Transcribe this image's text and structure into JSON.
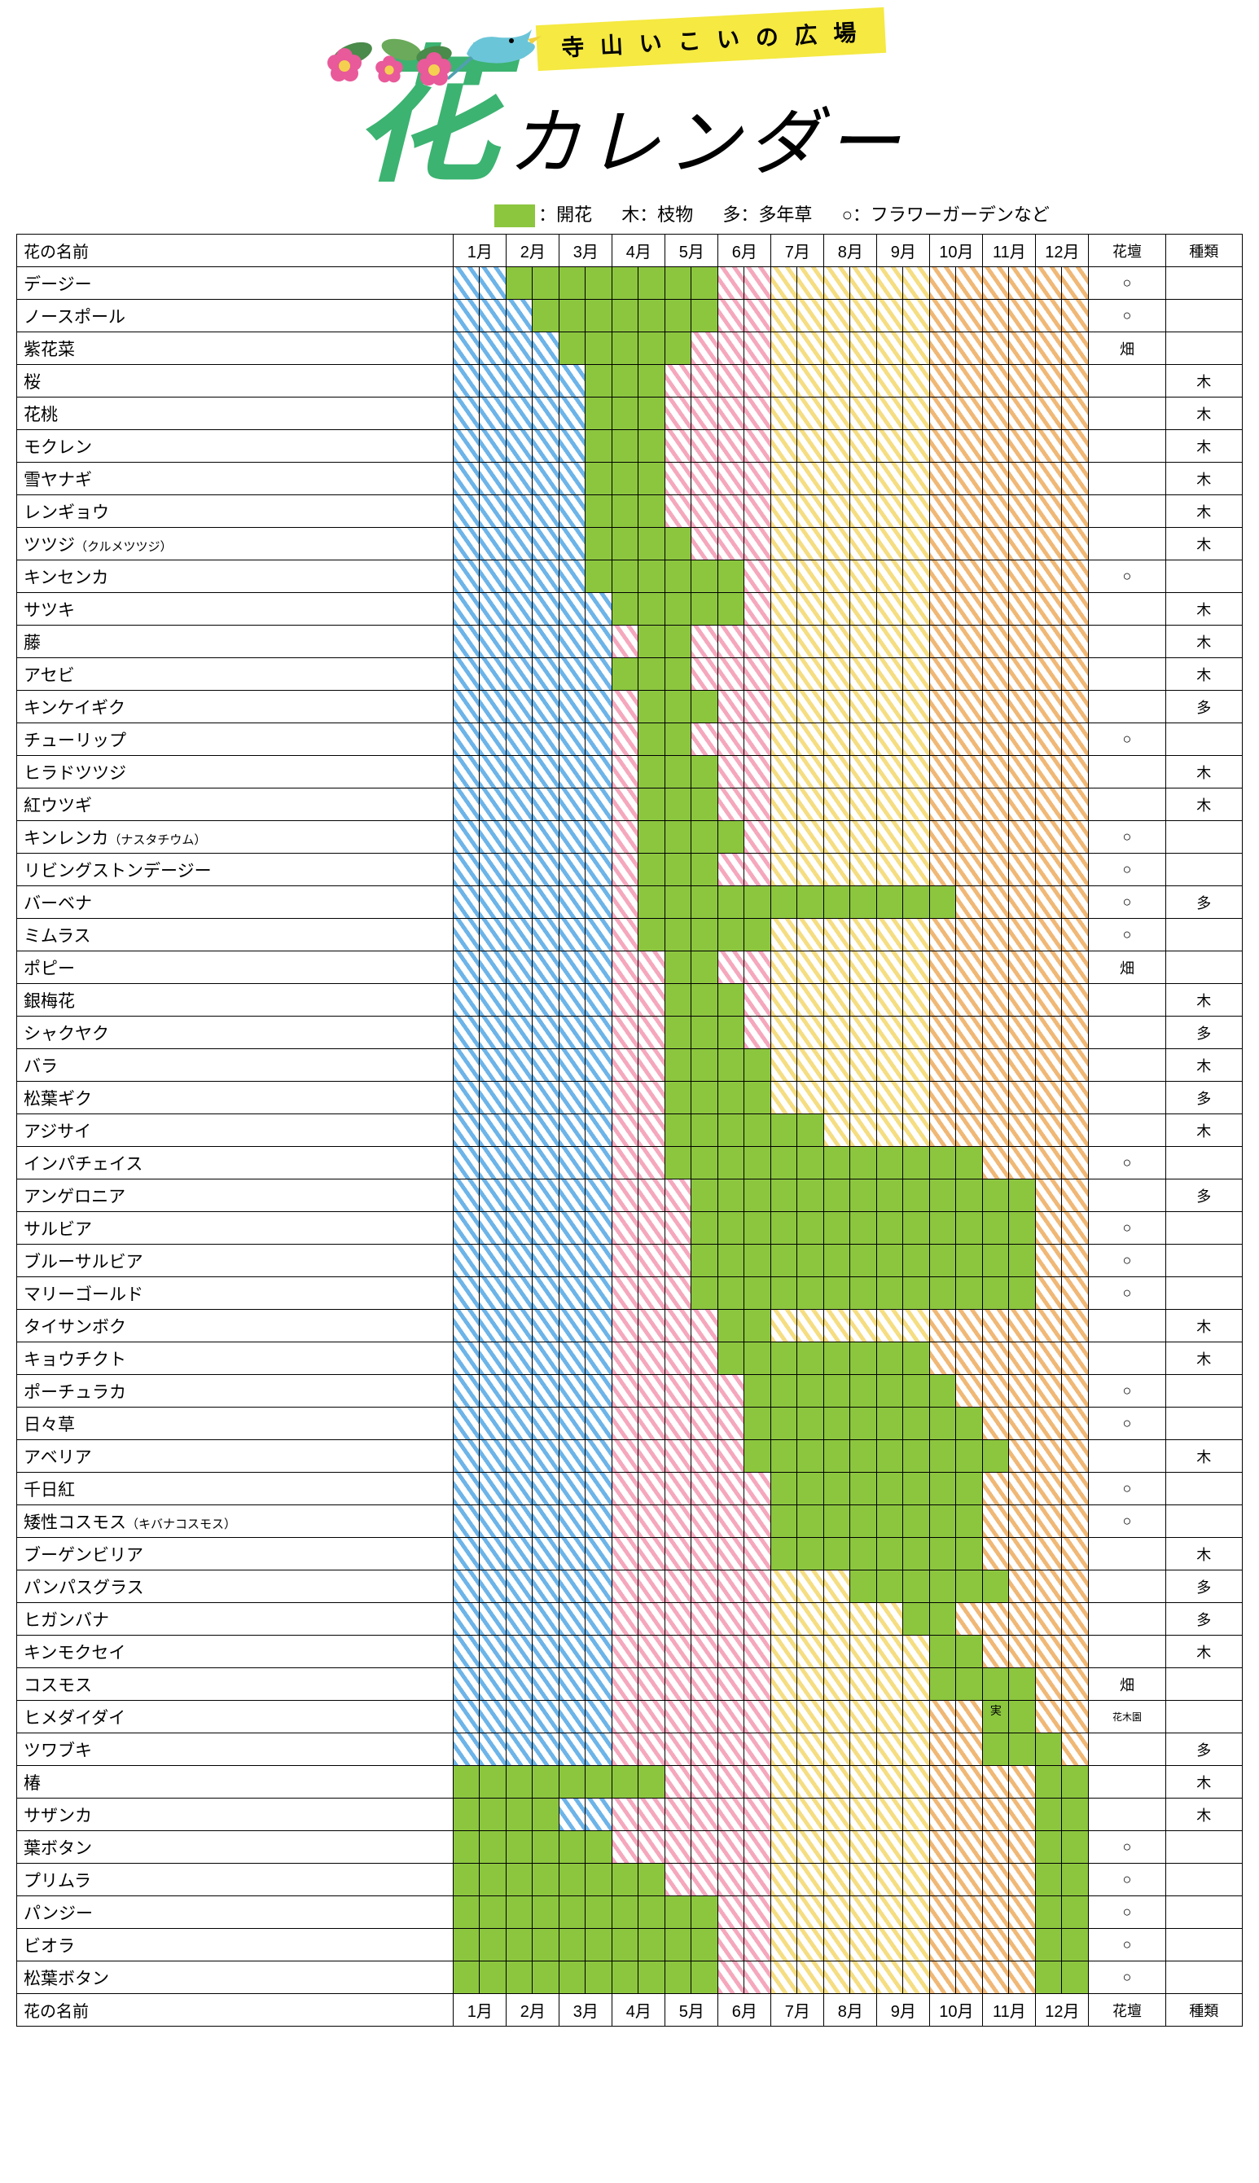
{
  "banner": "寺 山 い こ い の 広 場",
  "title_hana": "花",
  "title_calendar": "カレンダー",
  "legend": {
    "bloom": "：開花",
    "tree": "木：枝物",
    "perennial": "多：多年草",
    "garden": "○：フラワーガーデンなど"
  },
  "header": {
    "name": "花の名前",
    "months": [
      "1月",
      "2月",
      "3月",
      "4月",
      "5月",
      "6月",
      "7月",
      "8月",
      "9月",
      "10月",
      "11月",
      "12月"
    ],
    "garden": "花壇",
    "type": "種類"
  },
  "seasons": {
    "blue": {
      "color": "#6db4e8",
      "halves": [
        0,
        1,
        2,
        3,
        4,
        5
      ]
    },
    "pink": {
      "color": "#f5a8bd",
      "halves": [
        6,
        7,
        8,
        9,
        10,
        11
      ]
    },
    "yellow": {
      "color": "#f5dd82",
      "halves": [
        12,
        13,
        14,
        15,
        16,
        17
      ]
    },
    "orange": {
      "color": "#f0b876",
      "halves": [
        18,
        19,
        20,
        21,
        22,
        23
      ]
    }
  },
  "bloom_color": "#8cc63f",
  "flowers": [
    {
      "name": "デージー",
      "bloom": [
        2,
        3,
        4,
        5,
        6,
        7,
        8,
        9
      ],
      "garden": "○",
      "type": ""
    },
    {
      "name": "ノースポール",
      "bloom": [
        3,
        4,
        5,
        6,
        7,
        8,
        9
      ],
      "garden": "○",
      "type": ""
    },
    {
      "name": "紫花菜",
      "bloom": [
        4,
        5,
        6,
        7,
        8
      ],
      "garden": "畑",
      "type": ""
    },
    {
      "name": "桜",
      "bloom": [
        5,
        6,
        7
      ],
      "garden": "",
      "type": "木"
    },
    {
      "name": "花桃",
      "bloom": [
        5,
        6,
        7
      ],
      "garden": "",
      "type": "木"
    },
    {
      "name": "モクレン",
      "bloom": [
        5,
        6,
        7
      ],
      "garden": "",
      "type": "木"
    },
    {
      "name": "雪ヤナギ",
      "bloom": [
        5,
        6,
        7
      ],
      "garden": "",
      "type": "木"
    },
    {
      "name": "レンギョウ",
      "bloom": [
        5,
        6,
        7
      ],
      "garden": "",
      "type": "木"
    },
    {
      "name": "ツツジ",
      "sub": "（クルメツツジ）",
      "bloom": [
        5,
        6,
        7,
        8
      ],
      "garden": "",
      "type": "木"
    },
    {
      "name": "キンセンカ",
      "bloom": [
        5,
        6,
        7,
        8,
        9,
        10
      ],
      "garden": "○",
      "type": ""
    },
    {
      "name": "サツキ",
      "bloom": [
        6,
        7,
        8,
        9,
        10
      ],
      "garden": "",
      "type": "木"
    },
    {
      "name": "藤",
      "bloom": [
        7,
        8
      ],
      "garden": "",
      "type": "木"
    },
    {
      "name": "アセビ",
      "bloom": [
        6,
        7,
        8
      ],
      "garden": "",
      "type": "木"
    },
    {
      "name": "キンケイギク",
      "bloom": [
        7,
        8,
        9
      ],
      "garden": "",
      "type": "多"
    },
    {
      "name": "チューリップ",
      "bloom": [
        7,
        8
      ],
      "garden": "○",
      "type": ""
    },
    {
      "name": "ヒラドツツジ",
      "bloom": [
        7,
        8,
        9
      ],
      "garden": "",
      "type": "木"
    },
    {
      "name": "紅ウツギ",
      "bloom": [
        7,
        8,
        9
      ],
      "garden": "",
      "type": "木"
    },
    {
      "name": "キンレンカ",
      "sub": "（ナスタチウム）",
      "bloom": [
        7,
        8,
        9,
        10
      ],
      "garden": "○",
      "type": ""
    },
    {
      "name": "リビングストンデージー",
      "bloom": [
        7,
        8,
        9
      ],
      "garden": "○",
      "type": ""
    },
    {
      "name": "バーベナ",
      "bloom": [
        7,
        8,
        9,
        10,
        11,
        12,
        13,
        14,
        15,
        16,
        17,
        18
      ],
      "garden": "○",
      "type": "多"
    },
    {
      "name": "ミムラス",
      "bloom": [
        7,
        8,
        9,
        10,
        11
      ],
      "garden": "○",
      "type": ""
    },
    {
      "name": "ポピー",
      "bloom": [
        8,
        9
      ],
      "garden": "畑",
      "type": ""
    },
    {
      "name": "銀梅花",
      "bloom": [
        8,
        9,
        10
      ],
      "garden": "",
      "type": "木"
    },
    {
      "name": "シャクヤク",
      "bloom": [
        8,
        9,
        10
      ],
      "garden": "",
      "type": "多"
    },
    {
      "name": "バラ",
      "bloom": [
        8,
        9,
        10,
        11
      ],
      "garden": "",
      "type": "木"
    },
    {
      "name": "松葉ギク",
      "bloom": [
        8,
        9,
        10,
        11
      ],
      "garden": "",
      "type": "多"
    },
    {
      "name": "アジサイ",
      "bloom": [
        8,
        9,
        10,
        11,
        12,
        13
      ],
      "garden": "",
      "type": "木"
    },
    {
      "name": "インパチェイス",
      "bloom": [
        8,
        9,
        10,
        11,
        12,
        13,
        14,
        15,
        16,
        17,
        18,
        19
      ],
      "garden": "○",
      "type": ""
    },
    {
      "name": "アンゲロニア",
      "bloom": [
        9,
        10,
        11,
        12,
        13,
        14,
        15,
        16,
        17,
        18,
        19,
        20,
        21
      ],
      "garden": "",
      "type": "多"
    },
    {
      "name": "サルビア",
      "bloom": [
        9,
        10,
        11,
        12,
        13,
        14,
        15,
        16,
        17,
        18,
        19,
        20,
        21
      ],
      "garden": "○",
      "type": ""
    },
    {
      "name": "ブルーサルビア",
      "bloom": [
        9,
        10,
        11,
        12,
        13,
        14,
        15,
        16,
        17,
        18,
        19,
        20,
        21
      ],
      "garden": "○",
      "type": ""
    },
    {
      "name": "マリーゴールド",
      "bloom": [
        9,
        10,
        11,
        12,
        13,
        14,
        15,
        16,
        17,
        18,
        19,
        20,
        21
      ],
      "garden": "○",
      "type": ""
    },
    {
      "name": "タイサンボク",
      "bloom": [
        10,
        11
      ],
      "garden": "",
      "type": "木"
    },
    {
      "name": "キョウチクト",
      "bloom": [
        10,
        11,
        12,
        13,
        14,
        15,
        16,
        17
      ],
      "garden": "",
      "type": "木"
    },
    {
      "name": "ポーチュラカ",
      "bloom": [
        11,
        12,
        13,
        14,
        15,
        16,
        17,
        18
      ],
      "garden": "○",
      "type": ""
    },
    {
      "name": "日々草",
      "bloom": [
        11,
        12,
        13,
        14,
        15,
        16,
        17,
        18,
        19
      ],
      "garden": "○",
      "type": ""
    },
    {
      "name": "アベリア",
      "bloom": [
        11,
        12,
        13,
        14,
        15,
        16,
        17,
        18,
        19,
        20
      ],
      "garden": "",
      "type": "木"
    },
    {
      "name": "千日紅",
      "bloom": [
        12,
        13,
        14,
        15,
        16,
        17,
        18,
        19
      ],
      "garden": "○",
      "type": ""
    },
    {
      "name": "矮性コスモス",
      "sub": "（キバナコスモス）",
      "bloom": [
        12,
        13,
        14,
        15,
        16,
        17,
        18,
        19
      ],
      "garden": "○",
      "type": ""
    },
    {
      "name": "ブーゲンビリア",
      "bloom": [
        12,
        13,
        14,
        15,
        16,
        17,
        18,
        19
      ],
      "garden": "",
      "type": "木"
    },
    {
      "name": "パンパスグラス",
      "bloom": [
        15,
        16,
        17,
        18,
        19,
        20
      ],
      "garden": "",
      "type": "多"
    },
    {
      "name": "ヒガンバナ",
      "bloom": [
        17,
        18
      ],
      "garden": "",
      "type": "多"
    },
    {
      "name": "キンモクセイ",
      "bloom": [
        18,
        19
      ],
      "garden": "",
      "type": "木"
    },
    {
      "name": "コスモス",
      "bloom": [
        18,
        19,
        20,
        21
      ],
      "garden": "畑",
      "type": ""
    },
    {
      "name": "ヒメダイダイ",
      "bloom": [
        20,
        21
      ],
      "bloom_label": "実",
      "garden": "花木園",
      "garden_tiny": true,
      "type": ""
    },
    {
      "name": "ツワブキ",
      "bloom": [
        20,
        21,
        22
      ],
      "garden": "",
      "type": "多"
    },
    {
      "name": "椿",
      "bloom": [
        0,
        1,
        2,
        3,
        4,
        5,
        6,
        7,
        22,
        23
      ],
      "garden": "",
      "type": "木"
    },
    {
      "name": "サザンカ",
      "bloom": [
        0,
        1,
        2,
        3,
        22,
        23
      ],
      "garden": "",
      "type": "木"
    },
    {
      "name": "葉ボタン",
      "bloom": [
        0,
        1,
        2,
        3,
        4,
        5,
        22,
        23
      ],
      "garden": "○",
      "type": ""
    },
    {
      "name": "プリムラ",
      "bloom": [
        0,
        1,
        2,
        3,
        4,
        5,
        6,
        7,
        22,
        23
      ],
      "garden": "○",
      "type": ""
    },
    {
      "name": "パンジー",
      "bloom": [
        0,
        1,
        2,
        3,
        4,
        5,
        6,
        7,
        8,
        9,
        22,
        23
      ],
      "garden": "○",
      "type": ""
    },
    {
      "name": "ビオラ",
      "bloom": [
        0,
        1,
        2,
        3,
        4,
        5,
        6,
        7,
        8,
        9,
        22,
        23
      ],
      "garden": "○",
      "type": ""
    },
    {
      "name": "松葉ボタン",
      "bloom": [
        0,
        1,
        2,
        3,
        4,
        5,
        6,
        7,
        8,
        9,
        22,
        23
      ],
      "garden": "○",
      "type": ""
    }
  ]
}
